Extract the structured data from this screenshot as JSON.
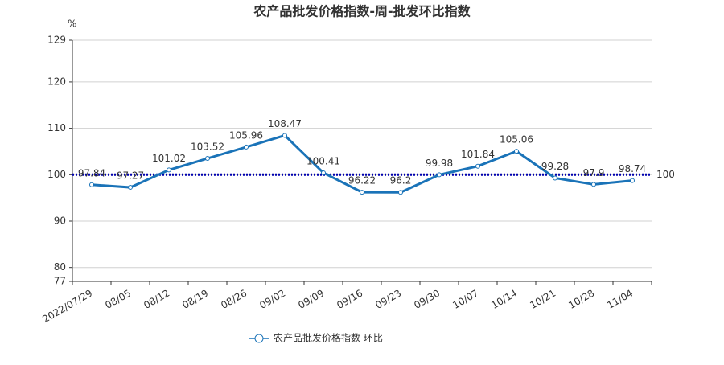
{
  "chart_data": {
    "type": "line",
    "title": "农产品批发价格指数-周-批发环比指数",
    "y_unit": "%",
    "categories": [
      "2022/07/29",
      "08/05",
      "08/12",
      "08/19",
      "08/26",
      "09/02",
      "09/09",
      "09/16",
      "09/23",
      "09/30",
      "10/07",
      "10/14",
      "10/21",
      "10/28",
      "11/04"
    ],
    "series": [
      {
        "name": "农产品批发价格指数 环比",
        "color": "#1a73b8",
        "values": [
          97.84,
          97.27,
          101.02,
          103.52,
          105.96,
          108.47,
          100.41,
          96.22,
          96.2,
          99.98,
          101.84,
          105.06,
          99.28,
          97.9,
          98.74
        ]
      }
    ],
    "ylim": [
      77,
      129
    ],
    "yticks": [
      77,
      80,
      90,
      100,
      110,
      120,
      129
    ],
    "grid": true,
    "reference_line": {
      "value": 100,
      "color": "#0000b0"
    },
    "legend": "bottom"
  }
}
